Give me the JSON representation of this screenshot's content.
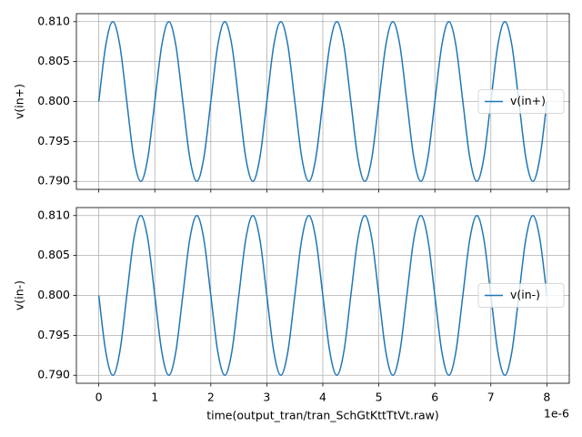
{
  "chart_data": [
    {
      "type": "line",
      "x": [
        0,
        0.125,
        0.25,
        0.375,
        0.5,
        0.625,
        0.75,
        0.875,
        1,
        1.125,
        1.25,
        1.375,
        1.5,
        1.625,
        1.75,
        1.875,
        2,
        2.125,
        2.25,
        2.375,
        2.5,
        2.625,
        2.75,
        2.875,
        3,
        3.125,
        3.25,
        3.375,
        3.5,
        3.625,
        3.75,
        3.875,
        4,
        4.125,
        4.25,
        4.375,
        4.5,
        4.625,
        4.75,
        4.875,
        5,
        5.125,
        5.25,
        5.375,
        5.5,
        5.625,
        5.75,
        5.875,
        6,
        6.125,
        6.25,
        6.375,
        6.5,
        6.625,
        6.75,
        6.875,
        7,
        7.125,
        7.25,
        7.375,
        7.5,
        7.625,
        7.75,
        7.875,
        8
      ],
      "series": [
        {
          "name": "v(in+)",
          "color": "#1f77b4",
          "values": [
            0.8,
            0.80707,
            0.81,
            0.80707,
            0.8,
            0.79293,
            0.79,
            0.79293,
            0.8,
            0.80707,
            0.81,
            0.80707,
            0.8,
            0.79293,
            0.79,
            0.79293,
            0.8,
            0.80707,
            0.81,
            0.80707,
            0.8,
            0.79293,
            0.79,
            0.79293,
            0.8,
            0.80707,
            0.81,
            0.80707,
            0.8,
            0.79293,
            0.79,
            0.79293,
            0.8,
            0.80707,
            0.81,
            0.80707,
            0.8,
            0.79293,
            0.79,
            0.79293,
            0.8,
            0.80707,
            0.81,
            0.80707,
            0.8,
            0.79293,
            0.79,
            0.79293,
            0.8,
            0.80707,
            0.81,
            0.80707,
            0.8,
            0.79293,
            0.79,
            0.79293,
            0.8,
            0.80707,
            0.81,
            0.80707,
            0.8,
            0.79293,
            0.79,
            0.79293,
            0.8
          ]
        }
      ],
      "y_label": "v(in+)",
      "xlim": [
        -0.4,
        8.4
      ],
      "xticks": [
        0,
        1,
        2,
        3,
        4,
        5,
        6,
        7,
        8
      ],
      "show_xtick_labels": false,
      "ylim": [
        0.789,
        0.811
      ],
      "yticks": [
        {
          "value": 0.79,
          "label": "0.790"
        },
        0.795,
        {
          "value": 0.8,
          "label": "0.800"
        },
        0.805,
        {
          "value": 0.81,
          "label": "0.810"
        }
      ],
      "grid": true,
      "legend": "center right"
    },
    {
      "type": "line",
      "x": [
        0,
        0.125,
        0.25,
        0.375,
        0.5,
        0.625,
        0.75,
        0.875,
        1,
        1.125,
        1.25,
        1.375,
        1.5,
        1.625,
        1.75,
        1.875,
        2,
        2.125,
        2.25,
        2.375,
        2.5,
        2.625,
        2.75,
        2.875,
        3,
        3.125,
        3.25,
        3.375,
        3.5,
        3.625,
        3.75,
        3.875,
        4,
        4.125,
        4.25,
        4.375,
        4.5,
        4.625,
        4.75,
        4.875,
        5,
        5.125,
        5.25,
        5.375,
        5.5,
        5.625,
        5.75,
        5.875,
        6,
        6.125,
        6.25,
        6.375,
        6.5,
        6.625,
        6.75,
        6.875,
        7,
        7.125,
        7.25,
        7.375,
        7.5,
        7.625,
        7.75,
        7.875,
        8
      ],
      "series": [
        {
          "name": "v(in-)",
          "color": "#1f77b4",
          "values": [
            0.8,
            0.79293,
            0.79,
            0.79293,
            0.8,
            0.80707,
            0.81,
            0.80707,
            0.8,
            0.79293,
            0.79,
            0.79293,
            0.8,
            0.80707,
            0.81,
            0.80707,
            0.8,
            0.79293,
            0.79,
            0.79293,
            0.8,
            0.80707,
            0.81,
            0.80707,
            0.8,
            0.79293,
            0.79,
            0.79293,
            0.8,
            0.80707,
            0.81,
            0.80707,
            0.8,
            0.79293,
            0.79,
            0.79293,
            0.8,
            0.80707,
            0.81,
            0.80707,
            0.8,
            0.79293,
            0.79,
            0.79293,
            0.8,
            0.80707,
            0.81,
            0.80707,
            0.8,
            0.79293,
            0.79,
            0.79293,
            0.8,
            0.80707,
            0.81,
            0.80707,
            0.8,
            0.79293,
            0.79,
            0.79293,
            0.8,
            0.80707,
            0.81,
            0.80707,
            0.8
          ]
        }
      ],
      "y_label": "v(in-)",
      "x_label": "time(output_tran/tran_SchGtKttTtVt.raw)",
      "x_offset_label": "1e-6",
      "xlim": [
        -0.4,
        8.4
      ],
      "xticks": [
        0,
        1,
        2,
        3,
        4,
        5,
        6,
        7,
        8
      ],
      "show_xtick_labels": true,
      "ylim": [
        0.789,
        0.811
      ],
      "yticks": [
        {
          "value": 0.79,
          "label": "0.790"
        },
        0.795,
        {
          "value": 0.8,
          "label": "0.800"
        },
        0.805,
        {
          "value": 0.81,
          "label": "0.810"
        }
      ],
      "grid": true,
      "legend": "center right"
    }
  ]
}
